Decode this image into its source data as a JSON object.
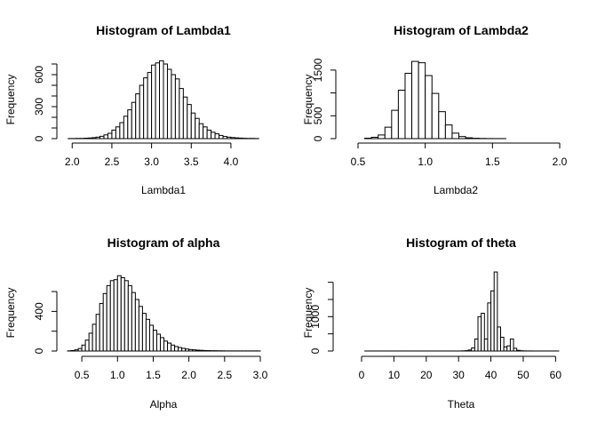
{
  "chart_data": [
    {
      "type": "bar",
      "title": "Histogram of Lambda1",
      "xlabel": "Lambda1",
      "ylabel": "Frequency",
      "xlim": [
        1.93,
        4.37
      ],
      "ylim": [
        0,
        750
      ],
      "xticks": [
        "2.0",
        "2.5",
        "3.0",
        "3.5",
        "4.0"
      ],
      "yticks": [
        "0",
        "300",
        "600"
      ],
      "bin_start": 1.95,
      "bin_width": 0.05,
      "values": [
        1,
        1,
        2,
        2,
        4,
        6,
        9,
        14,
        22,
        35,
        50,
        80,
        110,
        150,
        210,
        270,
        340,
        420,
        500,
        570,
        620,
        690,
        710,
        730,
        700,
        650,
        600,
        560,
        470,
        390,
        320,
        240,
        190,
        140,
        110,
        80,
        60,
        45,
        30,
        20,
        14,
        10,
        7,
        5,
        3,
        2,
        2,
        1
      ]
    },
    {
      "type": "bar",
      "title": "Histogram of Lambda2",
      "xlabel": "Lambda2",
      "ylabel": "Frequency",
      "xlim": [
        0.5,
        2.0
      ],
      "ylim": [
        0,
        1750
      ],
      "xticks": [
        "0.5",
        "1.0",
        "1.5",
        "2.0"
      ],
      "yticks": [
        "0",
        "500",
        "1500"
      ],
      "bin_start": 0.55,
      "bin_width": 0.05,
      "values": [
        10,
        30,
        80,
        250,
        620,
        1060,
        1430,
        1690,
        1660,
        1380,
        990,
        590,
        300,
        120,
        45,
        18,
        8,
        4,
        2,
        1,
        1,
        0,
        0,
        0,
        0,
        0,
        0,
        0,
        0
      ]
    },
    {
      "type": "bar",
      "title": "Histogram of alpha",
      "xlabel": "Alpha",
      "ylabel": "Frequency",
      "xlim": [
        0.25,
        3.0
      ],
      "ylim": [
        0,
        780
      ],
      "xticks": [
        "0.5",
        "1.0",
        "1.5",
        "2.0",
        "2.5",
        "3.0"
      ],
      "yticks": [
        "0",
        "400"
      ],
      "bin_start": 0.3,
      "bin_width": 0.05,
      "values": [
        2,
        5,
        12,
        25,
        60,
        110,
        180,
        270,
        370,
        480,
        580,
        660,
        710,
        720,
        760,
        740,
        710,
        660,
        590,
        520,
        450,
        380,
        320,
        260,
        210,
        170,
        135,
        100,
        80,
        60,
        45,
        35,
        27,
        20,
        15,
        12,
        9,
        7,
        5,
        4,
        3,
        3,
        2,
        2,
        1,
        1,
        1,
        1,
        1,
        1,
        1,
        1,
        1,
        1
      ]
    },
    {
      "type": "bar",
      "title": "Histogram of theta",
      "xlabel": "Theta",
      "ylabel": "Frequency",
      "xlim": [
        0,
        61
      ],
      "ylim": [
        0,
        2250
      ],
      "xticks": [
        "0",
        "10",
        "20",
        "30",
        "40",
        "50",
        "60"
      ],
      "yticks": [
        "0",
        "1000"
      ],
      "bin_start": 1,
      "bin_width": 1,
      "values": [
        1,
        1,
        1,
        1,
        1,
        1,
        1,
        1,
        1,
        1,
        1,
        1,
        1,
        1,
        1,
        1,
        1,
        1,
        1,
        1,
        1,
        1,
        1,
        1,
        1,
        1,
        1,
        1,
        1,
        1,
        5,
        10,
        30,
        90,
        350,
        1000,
        1100,
        350,
        1400,
        1750,
        2300,
        700,
        400,
        120,
        150,
        350,
        80,
        20,
        8,
        4,
        2,
        2,
        1,
        1,
        1,
        1,
        1,
        1,
        1,
        1
      ]
    }
  ]
}
